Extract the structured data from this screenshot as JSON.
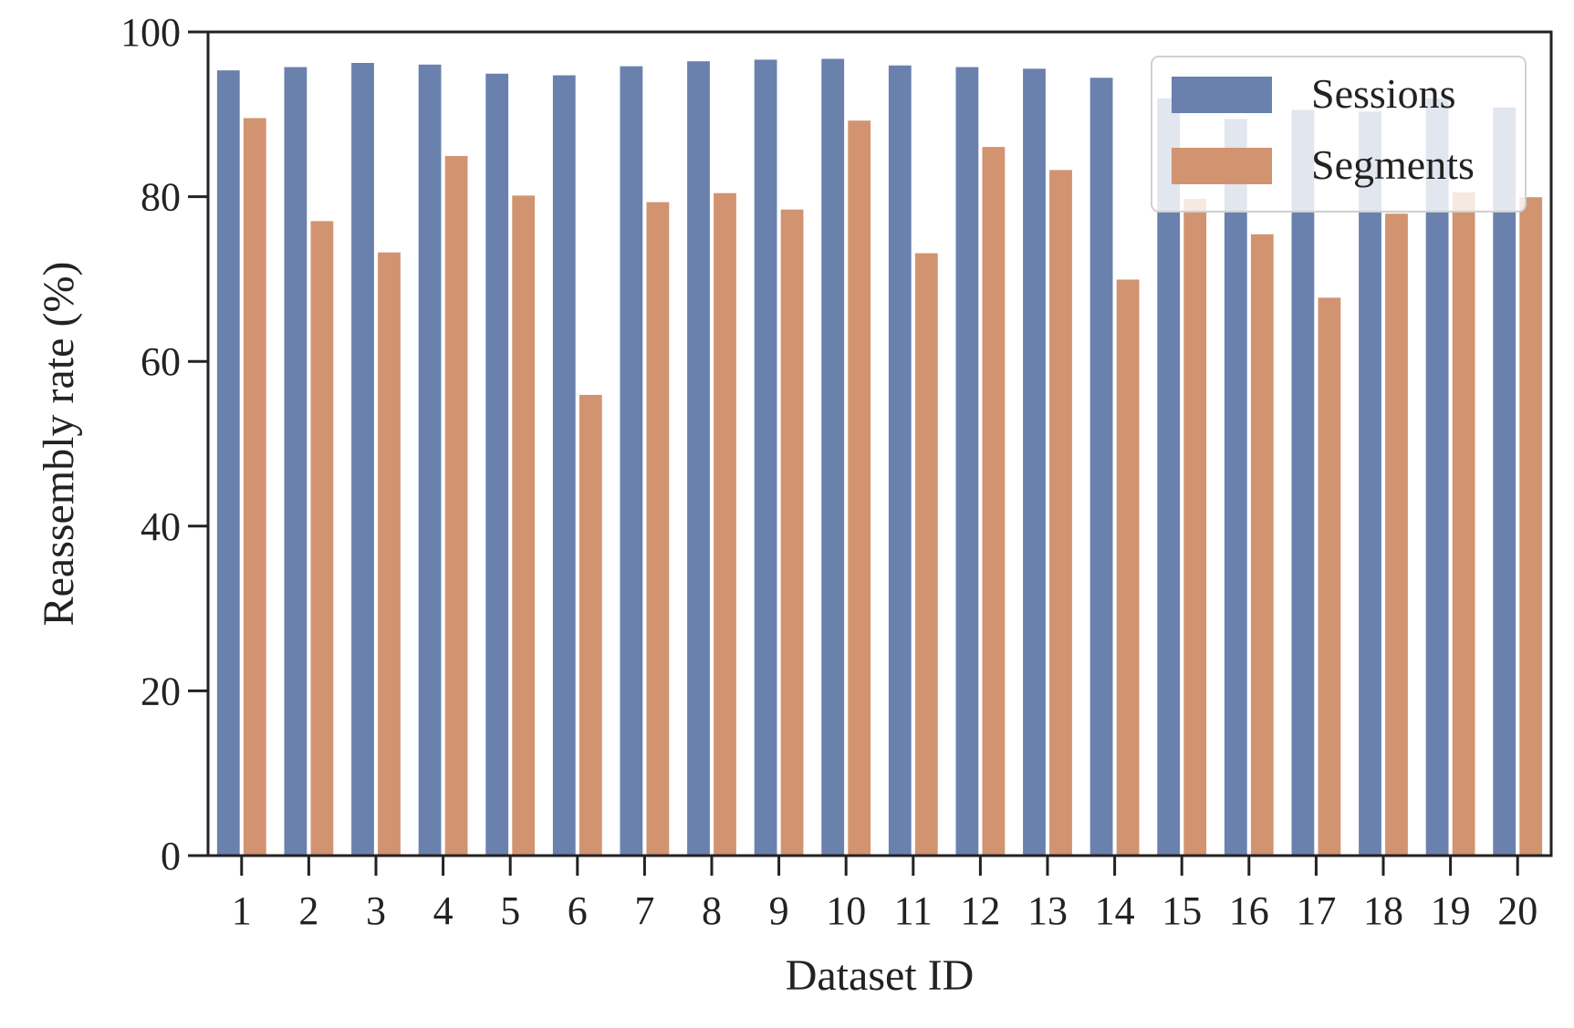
{
  "chart_data": {
    "type": "bar",
    "xlabel": "Dataset ID",
    "ylabel": "Reassembly rate (%)",
    "ylim": [
      0,
      100
    ],
    "yticks": [
      0,
      20,
      40,
      60,
      80,
      100
    ],
    "categories": [
      "1",
      "2",
      "3",
      "4",
      "5",
      "6",
      "7",
      "8",
      "9",
      "10",
      "11",
      "12",
      "13",
      "14",
      "15",
      "16",
      "17",
      "18",
      "19",
      "20"
    ],
    "series": [
      {
        "name": "Sessions",
        "color": "#6a81ad",
        "values": [
          95.4,
          95.8,
          96.3,
          96.1,
          95.0,
          94.8,
          95.9,
          96.5,
          96.7,
          96.8,
          96.0,
          95.8,
          95.6,
          94.5,
          92.0,
          89.5,
          90.6,
          90.4,
          92.0,
          90.9
        ]
      },
      {
        "name": "Segments",
        "color": "#d29371",
        "values": [
          89.6,
          77.1,
          73.3,
          85.0,
          80.2,
          56.0,
          79.4,
          80.5,
          78.5,
          89.3,
          73.2,
          86.1,
          83.3,
          70.0,
          79.8,
          75.5,
          67.8,
          78.0,
          80.6,
          80.0
        ]
      }
    ],
    "legend": {
      "position": "top-right"
    },
    "grid": false
  }
}
